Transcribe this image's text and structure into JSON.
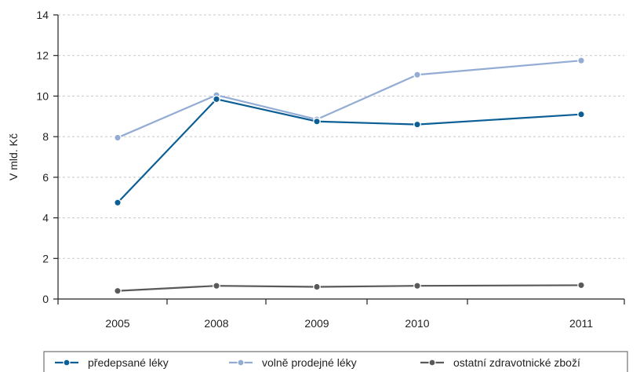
{
  "chart_data": {
    "type": "line",
    "categories": [
      "2005",
      "2008",
      "2009",
      "2010",
      "2011"
    ],
    "ylabel": "V mld. Kč",
    "ylim": [
      0,
      14
    ],
    "yticks": [
      0,
      2,
      4,
      6,
      8,
      10,
      12,
      14
    ],
    "grid": true,
    "legend_position": "bottom",
    "series": [
      {
        "name": "předepsané léky",
        "color": "#0b5f95",
        "values": [
          4.75,
          9.85,
          8.75,
          8.6,
          9.1
        ]
      },
      {
        "name": "volně prodejné léky",
        "color": "#93acd4",
        "values": [
          7.95,
          10.05,
          8.85,
          11.05,
          11.75
        ]
      },
      {
        "name": "ostatní zdravotnické zboží",
        "color": "#595959",
        "values": [
          0.4,
          0.65,
          0.6,
          0.65,
          0.68
        ]
      }
    ]
  }
}
